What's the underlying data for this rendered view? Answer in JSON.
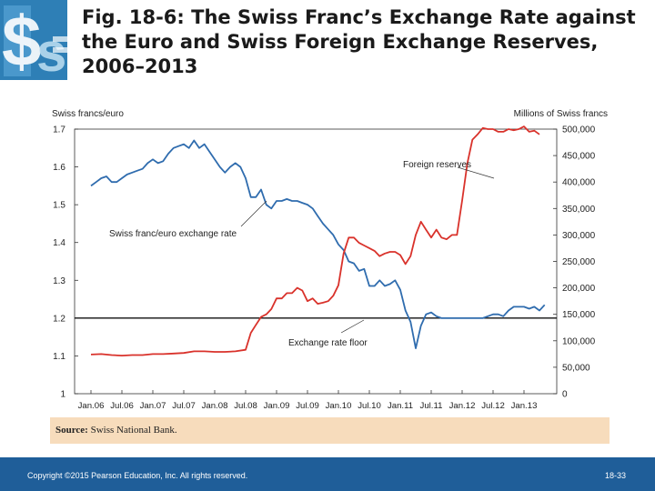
{
  "slide": {
    "title": "Fig. 18-6: The Swiss Franc’s Exchange Rate against the Euro and Swiss Foreign Exchange Reserves, 2006–2013",
    "source_label": "Source:",
    "source_text": "Swiss National Bank.",
    "copyright": "Copyright ©2015 Pearson Education, Inc. All rights reserved.",
    "page_number": "18-33",
    "footer_color": "#1f5e99",
    "logo_icon": "dollar-swiss-franc-logo-icon"
  },
  "chart_data": {
    "type": "line",
    "title": "",
    "left_axis_label": "Swiss francs/euro",
    "right_axis_label": "Millions of Swiss francs",
    "left_ylim": [
      1.0,
      1.7
    ],
    "right_ylim": [
      0,
      500000
    ],
    "left_ticks": [
      "1",
      "1.1",
      "1.2",
      "1.3",
      "1.4",
      "1.5",
      "1.6",
      "1.7"
    ],
    "right_ticks": [
      "0",
      "50,000",
      "100,000",
      "150,000",
      "200,000",
      "250,000",
      "300,000",
      "350,000",
      "400,000",
      "450,000",
      "500,000"
    ],
    "x_categories": [
      "Jan.06",
      "Jul.06",
      "Jan.07",
      "Jul.07",
      "Jan.08",
      "Jul.08",
      "Jan.09",
      "Jul.09",
      "Jan.10",
      "Jul.10",
      "Jan.11",
      "Jul.11",
      "Jan.12",
      "Jul.12",
      "Jan.13"
    ],
    "x_range_months": [
      0,
      90
    ],
    "series": [
      {
        "name": "Swiss franc/euro exchange rate",
        "axis": "left",
        "color": "#2f6cae",
        "points": [
          [
            0,
            1.55
          ],
          [
            1,
            1.56
          ],
          [
            2,
            1.57
          ],
          [
            3,
            1.575
          ],
          [
            4,
            1.56
          ],
          [
            5,
            1.56
          ],
          [
            6,
            1.57
          ],
          [
            7,
            1.58
          ],
          [
            8,
            1.585
          ],
          [
            9,
            1.59
          ],
          [
            10,
            1.595
          ],
          [
            11,
            1.61
          ],
          [
            12,
            1.62
          ],
          [
            13,
            1.61
          ],
          [
            14,
            1.615
          ],
          [
            15,
            1.635
          ],
          [
            16,
            1.65
          ],
          [
            17,
            1.655
          ],
          [
            18,
            1.66
          ],
          [
            19,
            1.65
          ],
          [
            20,
            1.67
          ],
          [
            21,
            1.65
          ],
          [
            22,
            1.66
          ],
          [
            23,
            1.64
          ],
          [
            24,
            1.62
          ],
          [
            25,
            1.6
          ],
          [
            26,
            1.585
          ],
          [
            27,
            1.6
          ],
          [
            28,
            1.61
          ],
          [
            29,
            1.6
          ],
          [
            30,
            1.57
          ],
          [
            31,
            1.52
          ],
          [
            32,
            1.52
          ],
          [
            33,
            1.54
          ],
          [
            34,
            1.5
          ],
          [
            35,
            1.49
          ],
          [
            36,
            1.51
          ],
          [
            37,
            1.51
          ],
          [
            38,
            1.515
          ],
          [
            39,
            1.51
          ],
          [
            40,
            1.51
          ],
          [
            41,
            1.505
          ],
          [
            42,
            1.5
          ],
          [
            43,
            1.49
          ],
          [
            44,
            1.47
          ],
          [
            45,
            1.45
          ],
          [
            46,
            1.435
          ],
          [
            47,
            1.42
          ],
          [
            48,
            1.395
          ],
          [
            49,
            1.38
          ],
          [
            50,
            1.35
          ],
          [
            51,
            1.345
          ],
          [
            52,
            1.325
          ],
          [
            53,
            1.33
          ],
          [
            54,
            1.285
          ],
          [
            55,
            1.285
          ],
          [
            56,
            1.3
          ],
          [
            57,
            1.285
          ],
          [
            58,
            1.29
          ],
          [
            59,
            1.3
          ],
          [
            60,
            1.275
          ],
          [
            61,
            1.22
          ],
          [
            62,
            1.19
          ],
          [
            63,
            1.12
          ],
          [
            64,
            1.18
          ],
          [
            65,
            1.21
          ],
          [
            66,
            1.215
          ],
          [
            67,
            1.205
          ],
          [
            68,
            1.2
          ],
          [
            69,
            1.2
          ],
          [
            70,
            1.2
          ],
          [
            71,
            1.2
          ],
          [
            72,
            1.2
          ],
          [
            73,
            1.2
          ],
          [
            74,
            1.2
          ],
          [
            75,
            1.2
          ],
          [
            76,
            1.2
          ],
          [
            77,
            1.205
          ],
          [
            78,
            1.21
          ],
          [
            79,
            1.21
          ],
          [
            80,
            1.205
          ],
          [
            81,
            1.22
          ],
          [
            82,
            1.23
          ],
          [
            83,
            1.23
          ],
          [
            84,
            1.23
          ],
          [
            85,
            1.225
          ],
          [
            86,
            1.23
          ],
          [
            87,
            1.22
          ],
          [
            88,
            1.235
          ]
        ]
      },
      {
        "name": "Foreign reserves",
        "axis": "right",
        "color": "#d9322b",
        "points": [
          [
            0,
            74000
          ],
          [
            2,
            75000
          ],
          [
            4,
            73000
          ],
          [
            6,
            72000
          ],
          [
            8,
            73000
          ],
          [
            10,
            73000
          ],
          [
            12,
            75000
          ],
          [
            14,
            75000
          ],
          [
            16,
            76000
          ],
          [
            18,
            77000
          ],
          [
            20,
            80000
          ],
          [
            22,
            80000
          ],
          [
            24,
            79000
          ],
          [
            26,
            79000
          ],
          [
            28,
            80000
          ],
          [
            30,
            83000
          ],
          [
            31,
            115000
          ],
          [
            32,
            130000
          ],
          [
            33,
            145000
          ],
          [
            34,
            150000
          ],
          [
            35,
            160000
          ],
          [
            36,
            180000
          ],
          [
            37,
            180000
          ],
          [
            38,
            190000
          ],
          [
            39,
            190000
          ],
          [
            40,
            200000
          ],
          [
            41,
            195000
          ],
          [
            42,
            175000
          ],
          [
            43,
            180000
          ],
          [
            44,
            170000
          ],
          [
            45,
            172000
          ],
          [
            46,
            175000
          ],
          [
            47,
            185000
          ],
          [
            48,
            205000
          ],
          [
            49,
            265000
          ],
          [
            50,
            295000
          ],
          [
            51,
            295000
          ],
          [
            52,
            285000
          ],
          [
            53,
            280000
          ],
          [
            54,
            275000
          ],
          [
            55,
            270000
          ],
          [
            56,
            260000
          ],
          [
            57,
            265000
          ],
          [
            58,
            268000
          ],
          [
            59,
            268000
          ],
          [
            60,
            262000
          ],
          [
            61,
            245000
          ],
          [
            62,
            260000
          ],
          [
            63,
            300000
          ],
          [
            64,
            325000
          ],
          [
            65,
            310000
          ],
          [
            66,
            295000
          ],
          [
            67,
            310000
          ],
          [
            68,
            295000
          ],
          [
            69,
            292000
          ],
          [
            70,
            300000
          ],
          [
            71,
            300000
          ],
          [
            72,
            365000
          ],
          [
            73,
            435000
          ],
          [
            74,
            480000
          ],
          [
            75,
            490000
          ],
          [
            76,
            502000
          ],
          [
            77,
            500000
          ],
          [
            78,
            500000
          ],
          [
            79,
            495000
          ],
          [
            80,
            495000
          ],
          [
            81,
            500000
          ],
          [
            82,
            498000
          ],
          [
            83,
            500000
          ],
          [
            84,
            505000
          ],
          [
            85,
            495000
          ],
          [
            86,
            497000
          ],
          [
            87,
            490000
          ]
        ]
      }
    ],
    "reference_line": {
      "name": "Exchange rate floor",
      "axis": "left",
      "value": 1.2,
      "color": "#111111"
    },
    "annotations": [
      {
        "text": "Swiss franc/euro exchange rate",
        "target_series": "Swiss franc/euro exchange rate"
      },
      {
        "text": "Foreign reserves",
        "target_series": "Foreign reserves"
      },
      {
        "text": "Exchange rate floor",
        "target_series": "Exchange rate floor"
      }
    ],
    "grid": false
  }
}
